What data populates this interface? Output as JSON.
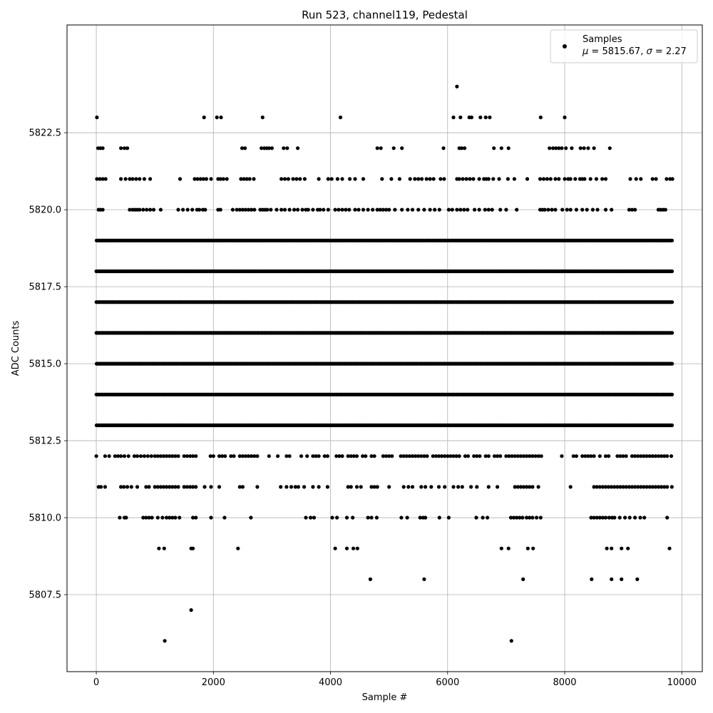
{
  "chart_data": {
    "type": "scatter",
    "title": "Run 523, channel119, Pedestal",
    "xlabel": "Sample #",
    "ylabel": "ADC Counts",
    "xlim": [
      -500,
      10350
    ],
    "ylim": [
      5805,
      5826
    ],
    "x_ticks": [
      0,
      2000,
      4000,
      6000,
      8000,
      10000
    ],
    "x_tick_labels": [
      "0",
      "2000",
      "4000",
      "6000",
      "8000",
      "10000"
    ],
    "y_ticks": [
      5807.5,
      5810.0,
      5812.5,
      5815.0,
      5817.5,
      5820.0,
      5822.5
    ],
    "y_tick_labels": [
      "5807.5",
      "5810.0",
      "5812.5",
      "5815.0",
      "5817.5",
      "5820.0",
      "5822.5"
    ],
    "grid": true,
    "legend_position": "top-right",
    "series": [
      {
        "name": "Samples",
        "color": "#000000",
        "x_range": [
          0,
          9840
        ],
        "levels": [
          {
            "y": 5806,
            "x": [
              1170,
              7090
            ]
          },
          {
            "y": 5807,
            "x": [
              1620
            ]
          },
          {
            "y": 5808,
            "x": [
              4680,
              5600,
              7290,
              8460,
              8800,
              8970,
              9240
            ]
          },
          {
            "y": 5809,
            "x": [
              1070,
              1160,
              1620,
              1650,
              2420,
              4080,
              4280,
              4390,
              4460,
              6920,
              7040,
              7370,
              7460,
              8720,
              8800,
              8970,
              9080,
              9790
            ]
          },
          {
            "y": 5810,
            "x": [
              400,
              480,
              510,
              800,
              850,
              900,
              950,
              1050,
              1130,
              1200,
              1250,
              1300,
              1350,
              1420,
              1650,
              1700,
              1960,
              2190,
              2640,
              3580,
              3660,
              3720,
              4030,
              4110,
              4280,
              4380,
              4640,
              4700,
              4790,
              5210,
              5310,
              5530,
              5580,
              5620,
              5860,
              6020,
              6490,
              6600,
              6680,
              7080,
              7130,
              7180,
              7230,
              7280,
              7350,
              7400,
              7450,
              7520,
              7590,
              8450,
              8500,
              8550,
              8600,
              8650,
              8700,
              8760,
              8810,
              8850,
              8940,
              9030,
              9110,
              9200,
              9290,
              9360,
              9750
            ]
          },
          {
            "y": 5811,
            "x": [
              40,
              80,
              150,
              420,
              470,
              530,
              600,
              700,
              850,
              900,
              1000,
              1050,
              1100,
              1150,
              1200,
              1250,
              1300,
              1350,
              1400,
              1500,
              1550,
              1600,
              1650,
              1700,
              1850,
              1960,
              2100,
              2450,
              2500,
              2750,
              3150,
              3250,
              3330,
              3400,
              3450,
              3550,
              3700,
              3800,
              3950,
              4300,
              4350,
              4450,
              4520,
              4700,
              4750,
              4800,
              5000,
              5250,
              5330,
              5400,
              5550,
              5620,
              5720,
              5850,
              5950,
              6100,
              6180,
              6250,
              6400,
              6500,
              6700,
              6850,
              7150,
              7200,
              7250,
              7300,
              7350,
              7400,
              7450,
              7550,
              8100,
              8500,
              8550,
              8600,
              8650,
              8700,
              8750,
              8800,
              8850,
              8900,
              8950,
              9000,
              9050,
              9100,
              9150,
              9200,
              9250,
              9300,
              9350,
              9400,
              9450,
              9500,
              9550,
              9600,
              9650,
              9700,
              9750,
              9830
            ]
          },
          {
            "y": 5812,
            "x": [
              0,
              150,
              220,
              320,
              370,
              420,
              480,
              550,
              650,
              700,
              760,
              820,
              880,
              940,
              1000,
              1050,
              1100,
              1150,
              1200,
              1250,
              1300,
              1350,
              1400,
              1500,
              1550,
              1600,
              1650,
              1700,
              1950,
              2000,
              2100,
              2150,
              2200,
              2300,
              2350,
              2450,
              2500,
              2550,
              2600,
              2650,
              2700,
              2750,
              2950,
              3100,
              3250,
              3300,
              3500,
              3600,
              3700,
              3750,
              3800,
              3900,
              3950,
              4100,
              4150,
              4200,
              4300,
              4350,
              4400,
              4450,
              4550,
              4600,
              4700,
              4750,
              4900,
              4950,
              5000,
              5050,
              5200,
              5250,
              5300,
              5350,
              5400,
              5450,
              5500,
              5550,
              5600,
              5650,
              5750,
              5800,
              5850,
              5900,
              5950,
              6000,
              6050,
              6100,
              6150,
              6200,
              6300,
              6350,
              6450,
              6500,
              6550,
              6650,
              6700,
              6800,
              6850,
              6900,
              7000,
              7050,
              7100,
              7150,
              7200,
              7250,
              7300,
              7350,
              7400,
              7450,
              7500,
              7550,
              7600,
              7950,
              8150,
              8200,
              8300,
              8350,
              8400,
              8450,
              8500,
              8600,
              8700,
              8750,
              8900,
              8950,
              9000,
              9050,
              9150,
              9200,
              9250,
              9300,
              9350,
              9400,
              9450,
              9500,
              9550,
              9600,
              9650,
              9700,
              9750,
              9820
            ]
          },
          {
            "y": 5813,
            "x": [
              0,
              9840
            ],
            "dense": true
          },
          {
            "y": 5814,
            "x": [
              0,
              9840
            ],
            "dense": true
          },
          {
            "y": 5815,
            "x": [
              0,
              9840
            ],
            "dense": true
          },
          {
            "y": 5816,
            "x": [
              0,
              9840
            ],
            "dense": true
          },
          {
            "y": 5817,
            "x": [
              0,
              9840
            ],
            "dense": true
          },
          {
            "y": 5818,
            "x": [
              0,
              9840
            ],
            "dense": true
          },
          {
            "y": 5819,
            "x": [
              0,
              9840
            ],
            "dense": true
          },
          {
            "y": 5820,
            "x": [
              40,
              70,
              110,
              570,
              620,
              660,
              700,
              740,
              800,
              860,
              920,
              980,
              1100,
              1400,
              1480,
              1560,
              1640,
              1720,
              1760,
              1820,
              1860,
              2080,
              2120,
              2330,
              2400,
              2450,
              2500,
              2550,
              2600,
              2650,
              2700,
              2800,
              2840,
              2880,
              2920,
              2980,
              3080,
              3160,
              3220,
              3300,
              3380,
              3440,
              3520,
              3580,
              3620,
              3700,
              3780,
              3820,
              3880,
              3960,
              4080,
              4140,
              4200,
              4260,
              4320,
              4420,
              4480,
              4560,
              4640,
              4720,
              4800,
              4850,
              4900,
              4950,
              5000,
              5100,
              5220,
              5320,
              5400,
              5500,
              5600,
              5700,
              5780,
              5860,
              6020,
              6080,
              6160,
              6220,
              6280,
              6340,
              6460,
              6540,
              6640,
              6700,
              6760,
              6900,
              7000,
              7180,
              7580,
              7620,
              7660,
              7720,
              7780,
              7840,
              7960,
              8040,
              8100,
              8200,
              8300,
              8380,
              8480,
              8560,
              8700,
              8800,
              9100,
              9150,
              9200,
              9600,
              9640,
              9680,
              9720
            ]
          },
          {
            "y": 5821,
            "x": [
              10,
              60,
              110,
              160,
              420,
              500,
              570,
              620,
              680,
              740,
              820,
              920,
              1430,
              1680,
              1730,
              1780,
              1830,
              1880,
              1960,
              2080,
              2120,
              2170,
              2230,
              2470,
              2520,
              2570,
              2620,
              2690,
              3160,
              3220,
              3280,
              3360,
              3420,
              3480,
              3560,
              3800,
              3960,
              4020,
              4120,
              4200,
              4330,
              4420,
              4560,
              4880,
              5040,
              5180,
              5360,
              5440,
              5500,
              5560,
              5640,
              5700,
              5760,
              5880,
              5940,
              6160,
              6200,
              6260,
              6320,
              6380,
              6440,
              6540,
              6620,
              6660,
              6700,
              6780,
              6880,
              7030,
              7140,
              7360,
              7580,
              7640,
              7700,
              7760,
              7840,
              7900,
              8000,
              8060,
              8100,
              8180,
              8260,
              8300,
              8340,
              8440,
              8540,
              8640,
              8700,
              9120,
              9220,
              9300,
              9500,
              9560,
              9740,
              9800,
              9840
            ]
          },
          {
            "y": 5822,
            "x": [
              30,
              70,
              110,
              420,
              480,
              530,
              2490,
              2540,
              2820,
              2870,
              2910,
              2950,
              3000,
              3200,
              3260,
              3440,
              4800,
              4860,
              5080,
              5220,
              5930,
              6200,
              6240,
              6290,
              6790,
              6920,
              7040,
              7740,
              7800,
              7850,
              7900,
              7950,
              8020,
              8120,
              8270,
              8330,
              8400,
              8500,
              8770
            ]
          },
          {
            "y": 5823,
            "x": [
              10,
              1840,
              2060,
              2130,
              2840,
              4170,
              6100,
              6220,
              6370,
              6410,
              6560,
              6650,
              6720,
              7590,
              8000
            ]
          },
          {
            "y": 5824,
            "x": [
              6160
            ]
          }
        ]
      }
    ]
  },
  "legend": {
    "label": "Samples",
    "stats_mu_prefix": "μ",
    "stats_mu_value": " = 5815.67, ",
    "stats_sigma_prefix": "σ",
    "stats_sigma_value": " = 2.27"
  }
}
